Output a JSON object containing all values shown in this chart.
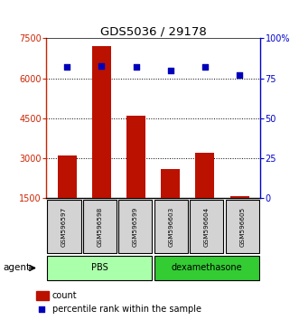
{
  "title": "GDS5036 / 29178",
  "samples": [
    "GSM596597",
    "GSM596598",
    "GSM596599",
    "GSM596603",
    "GSM596604",
    "GSM596605"
  ],
  "counts": [
    3100,
    7200,
    4600,
    2600,
    3200,
    1600
  ],
  "percentiles": [
    82,
    83,
    82,
    80,
    82,
    77
  ],
  "ylim_left": [
    1500,
    7500
  ],
  "ylim_right": [
    0,
    100
  ],
  "yticks_left": [
    1500,
    3000,
    4500,
    6000,
    7500
  ],
  "yticks_right": [
    0,
    25,
    50,
    75,
    100
  ],
  "ytick_labels_right": [
    "0",
    "25",
    "50",
    "75",
    "100%"
  ],
  "groups": [
    {
      "label": "PBS",
      "indices": [
        0,
        1,
        2
      ],
      "color": "#AAFFAA"
    },
    {
      "label": "dexamethasone",
      "indices": [
        3,
        4,
        5
      ],
      "color": "#33CC33"
    }
  ],
  "bar_color": "#BB1100",
  "dot_color": "#0000BB",
  "bar_bottom": 1500,
  "agent_label": "agent",
  "legend_count_label": "count",
  "legend_pct_label": "percentile rank within the sample",
  "bg_color": "#ffffff",
  "axis_left_color": "#CC2200",
  "axis_right_color": "#0000CC",
  "grid_yticks": [
    3000,
    4500,
    6000
  ]
}
